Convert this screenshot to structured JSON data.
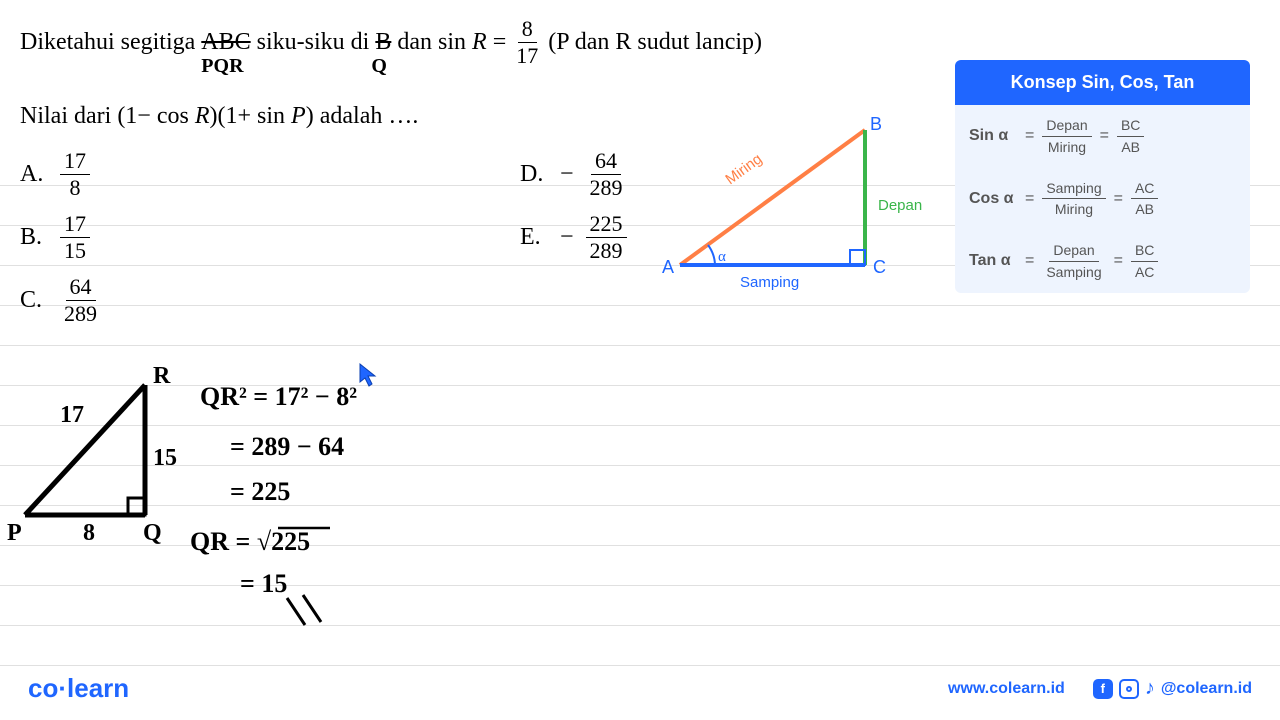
{
  "problem": {
    "line1_prefix": "Diketahui segitiga",
    "struck1": "ABC",
    "mid1": "siku-siku di",
    "struck2": "B",
    "mid2": "dan",
    "sinR": "sin",
    "R": "R",
    "eq": "=",
    "frac_num": "8",
    "frac_den": "17",
    "suffix1": "(P dan R sudut lancip)",
    "hand1": "PQR",
    "hand2": "Q",
    "line2_prefix": "Nilai dari",
    "expr": "(1 − cos R)(1 + sin P)",
    "line2_suffix": "adalah …."
  },
  "options": {
    "A": {
      "letter": "A.",
      "num": "17",
      "den": "8",
      "neg": false
    },
    "B": {
      "letter": "B.",
      "num": "17",
      "den": "15",
      "neg": false
    },
    "C": {
      "letter": "C.",
      "num": "64",
      "den": "289",
      "neg": false
    },
    "D": {
      "letter": "D.",
      "num": "64",
      "den": "289",
      "neg": true
    },
    "E": {
      "letter": "E.",
      "num": "225",
      "den": "289",
      "neg": true
    }
  },
  "triangle": {
    "A": "A",
    "B": "B",
    "C": "C",
    "alpha": "α",
    "miring": "Miring",
    "depan": "Depan",
    "samping": "Samping",
    "color_hyp": "#ff7f45",
    "color_opp": "#3ab54a",
    "color_adj": "#1f66ff"
  },
  "concept": {
    "title": "Konsep Sin, Cos, Tan",
    "sin": {
      "label": "Sin α",
      "wnum": "Depan",
      "wden": "Miring",
      "lnum": "BC",
      "lden": "AB"
    },
    "cos": {
      "label": "Cos α",
      "wnum": "Samping",
      "wden": "Miring",
      "lnum": "AC",
      "lden": "AB"
    },
    "tan": {
      "label": "Tan α",
      "wnum": "Depan",
      "wden": "Samping",
      "lnum": "BC",
      "lden": "AC"
    },
    "bg": "#eef4fe",
    "header_bg": "#1f66ff"
  },
  "work": {
    "R": "R",
    "P": "P",
    "Q": "Q",
    "side_17": "17",
    "side_15": "15",
    "side_8": "8",
    "l1": "QR² = 17² − 8²",
    "l2": "= 289 − 64",
    "l3": "= 225",
    "l4": "QR = √225",
    "l5": "= 15"
  },
  "footer": {
    "logo_co": "co",
    "logo_learn": "learn",
    "url": "www.colearn.id",
    "handle": "@colearn.id"
  },
  "ruled_lines": {
    "start": 185,
    "step": 40,
    "count": 13,
    "color": "#e0e0e0"
  }
}
